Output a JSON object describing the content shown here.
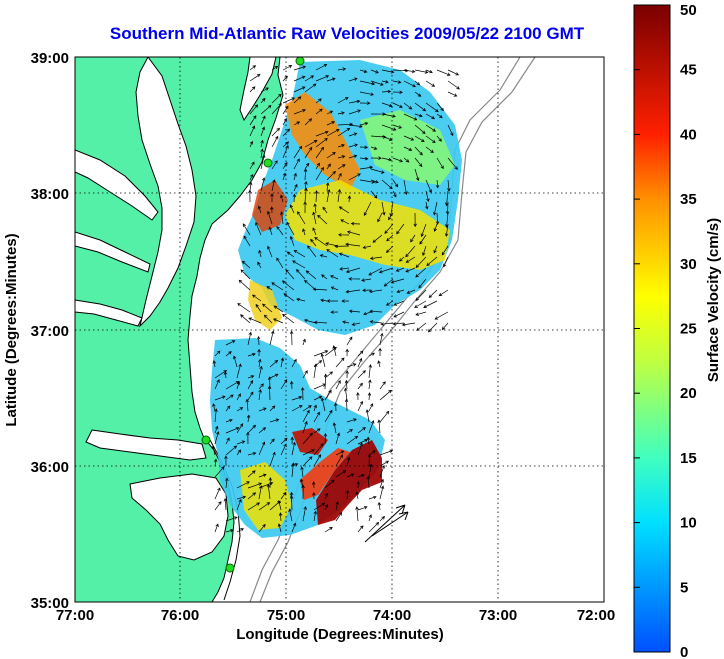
{
  "title": "Southern Mid-Atlantic Raw Velocities 2009/05/22 2100 GMT",
  "x_axis": {
    "label": "Longitude (Degrees:Minutes)",
    "ticks": [
      "77:00",
      "76:00",
      "75:00",
      "74:00",
      "73:00",
      "72:00"
    ]
  },
  "y_axis": {
    "label": "Latitude (Degrees:Minutes)",
    "ticks": [
      "39:00",
      "38:00",
      "37:00",
      "36:00",
      "35:00"
    ]
  },
  "colorbar": {
    "label": "Surface Velocity (cm/s)",
    "ticks": [
      "50",
      "45",
      "40",
      "35",
      "30",
      "25",
      "20",
      "15",
      "10",
      "5",
      "0"
    ],
    "min": 0,
    "max": 50
  },
  "colors": {
    "land": "#55f0a8",
    "water": "#ffffff",
    "title": "#0000ee",
    "station": "#22dd22",
    "arrows": "#000000"
  },
  "map_extent": {
    "lon_min": -77,
    "lon_max": -72,
    "lat_min": 35,
    "lat_max": 39
  }
}
